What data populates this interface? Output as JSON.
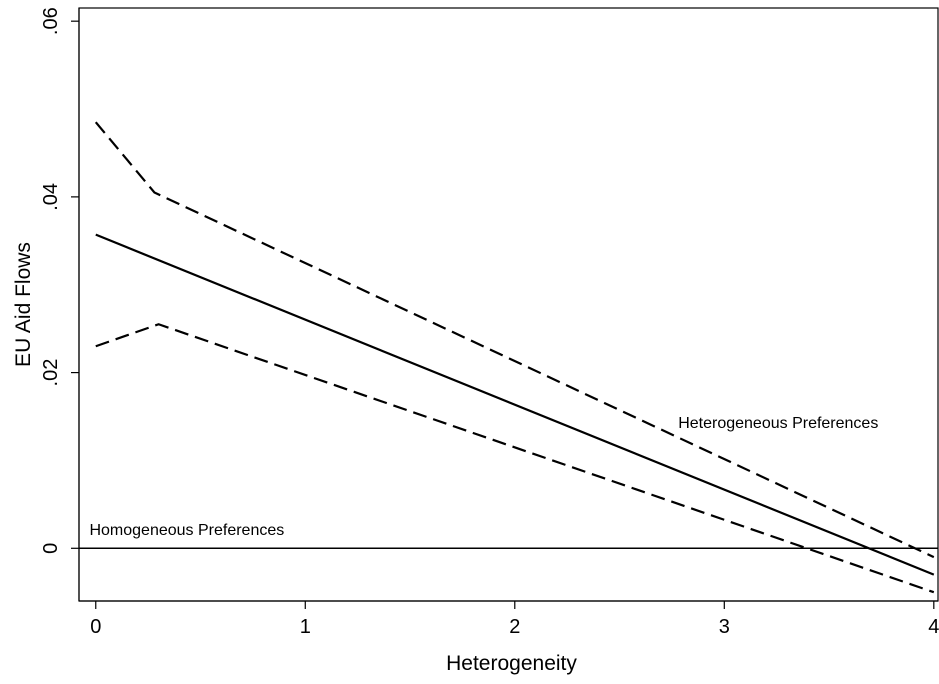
{
  "chart_data": {
    "type": "line",
    "xlabel": "Heterogeneity",
    "ylabel": "EU Aid Flows",
    "xlim": [
      -0.08,
      4.02
    ],
    "ylim": [
      -0.006,
      0.0615
    ],
    "xticks": [
      0,
      1,
      2,
      3,
      4
    ],
    "xtick_labels": [
      "0",
      "1",
      "2",
      "3",
      "4"
    ],
    "yticks": [
      0,
      0.02,
      0.04,
      0.06
    ],
    "ytick_labels": [
      "0",
      ".02",
      ".04",
      ".06"
    ],
    "grid": false,
    "legend": "none",
    "series": [
      {
        "style": "solid",
        "x": [
          0,
          4
        ],
        "y": [
          0.0357,
          -0.003
        ]
      },
      {
        "style": "dashed",
        "x": [
          0,
          0.28,
          4
        ],
        "y": [
          0.0485,
          0.0405,
          -0.001
        ]
      },
      {
        "style": "dashed",
        "x": [
          0,
          0.3,
          4
        ],
        "y": [
          0.023,
          0.0255,
          -0.005
        ]
      }
    ],
    "reference_lines": [
      {
        "y": 0
      }
    ],
    "annotations": [
      {
        "text": "Homogeneous Preferences",
        "x": -0.03,
        "y": 0.0015
      },
      {
        "text": "Heterogeneous Preferences",
        "x": 2.78,
        "y": 0.0137
      }
    ]
  }
}
